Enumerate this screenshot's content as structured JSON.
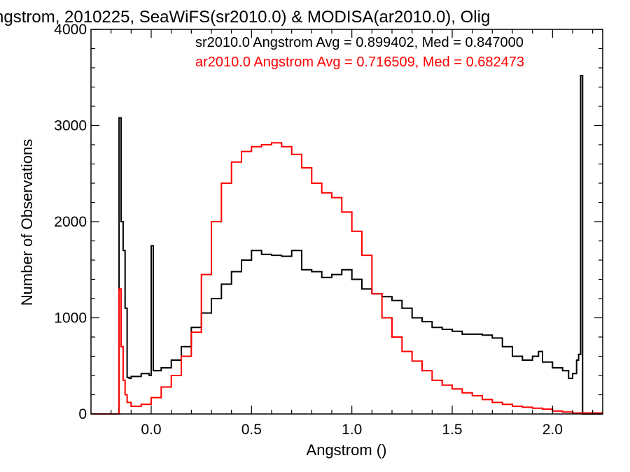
{
  "chart_data": {
    "type": "line",
    "title": "ngstrom, 2010225, SeaWiFS(sr2010.0) & MODISA(ar2010.0), Olig",
    "xlabel": "Angstrom ()",
    "ylabel": "Number of Observations",
    "xlim": [
      -0.3,
      2.25
    ],
    "ylim": [
      0,
      4000
    ],
    "x_ticks": [
      0.0,
      0.5,
      1.0,
      1.5,
      2.0
    ],
    "x_tick_labels": [
      "0.0",
      "0.5",
      "1.0",
      "1.5",
      "2.0"
    ],
    "y_ticks": [
      0,
      1000,
      2000,
      3000,
      4000
    ],
    "y_tick_labels": [
      "0",
      "1000",
      "2000",
      "3000",
      "4000"
    ],
    "grid": false,
    "step_style": "histogram",
    "annotations": [
      {
        "text": "sr2010.0 Angstrom Avg = 0.899402, Med = 0.847000",
        "color": "#000000"
      },
      {
        "text": "ar2010.0 Angstrom Avg = 0.716509, Med = 0.682473",
        "color": "#ff0000"
      }
    ],
    "series": [
      {
        "color": "#000000",
        "x": [
          -0.3,
          -0.16,
          -0.15,
          -0.14,
          -0.13,
          -0.12,
          -0.11,
          -0.1,
          -0.05,
          -0.01,
          0.0,
          0.01,
          0.05,
          0.1,
          0.15,
          0.2,
          0.25,
          0.3,
          0.35,
          0.4,
          0.45,
          0.5,
          0.55,
          0.6,
          0.65,
          0.7,
          0.75,
          0.8,
          0.85,
          0.9,
          0.95,
          1.0,
          1.05,
          1.1,
          1.15,
          1.2,
          1.25,
          1.3,
          1.35,
          1.4,
          1.45,
          1.5,
          1.55,
          1.6,
          1.65,
          1.7,
          1.75,
          1.8,
          1.85,
          1.9,
          1.93,
          1.95,
          2.0,
          2.05,
          2.08,
          2.1,
          2.12,
          2.13,
          2.14,
          2.15,
          2.25
        ],
        "y": [
          0,
          3080,
          2000,
          1700,
          1100,
          380,
          370,
          390,
          420,
          400,
          1750,
          450,
          480,
          560,
          700,
          900,
          1050,
          1200,
          1350,
          1480,
          1600,
          1700,
          1660,
          1650,
          1640,
          1700,
          1500,
          1480,
          1420,
          1450,
          1500,
          1400,
          1300,
          1250,
          1220,
          1180,
          1100,
          1000,
          960,
          900,
          880,
          860,
          830,
          830,
          820,
          790,
          700,
          600,
          560,
          600,
          650,
          540,
          480,
          450,
          370,
          420,
          560,
          620,
          3520,
          0,
          0
        ]
      },
      {
        "color": "#ff0000",
        "x": [
          -0.3,
          -0.16,
          -0.15,
          -0.14,
          -0.13,
          -0.12,
          -0.1,
          -0.05,
          0.0,
          0.05,
          0.1,
          0.15,
          0.2,
          0.25,
          0.3,
          0.35,
          0.4,
          0.45,
          0.5,
          0.55,
          0.6,
          0.65,
          0.7,
          0.75,
          0.8,
          0.85,
          0.9,
          0.95,
          1.0,
          1.05,
          1.1,
          1.15,
          1.2,
          1.25,
          1.3,
          1.35,
          1.4,
          1.45,
          1.5,
          1.55,
          1.6,
          1.65,
          1.7,
          1.75,
          1.8,
          1.85,
          1.9,
          1.95,
          2.0,
          2.05,
          2.1,
          2.25
        ],
        "y": [
          0,
          1300,
          700,
          350,
          200,
          120,
          80,
          100,
          170,
          280,
          400,
          600,
          850,
          1450,
          2000,
          2400,
          2620,
          2730,
          2780,
          2800,
          2820,
          2780,
          2700,
          2560,
          2400,
          2300,
          2250,
          2100,
          1900,
          1650,
          1250,
          1000,
          800,
          650,
          550,
          450,
          350,
          300,
          260,
          220,
          190,
          150,
          120,
          100,
          80,
          70,
          60,
          50,
          30,
          20,
          10,
          0
        ]
      }
    ]
  }
}
